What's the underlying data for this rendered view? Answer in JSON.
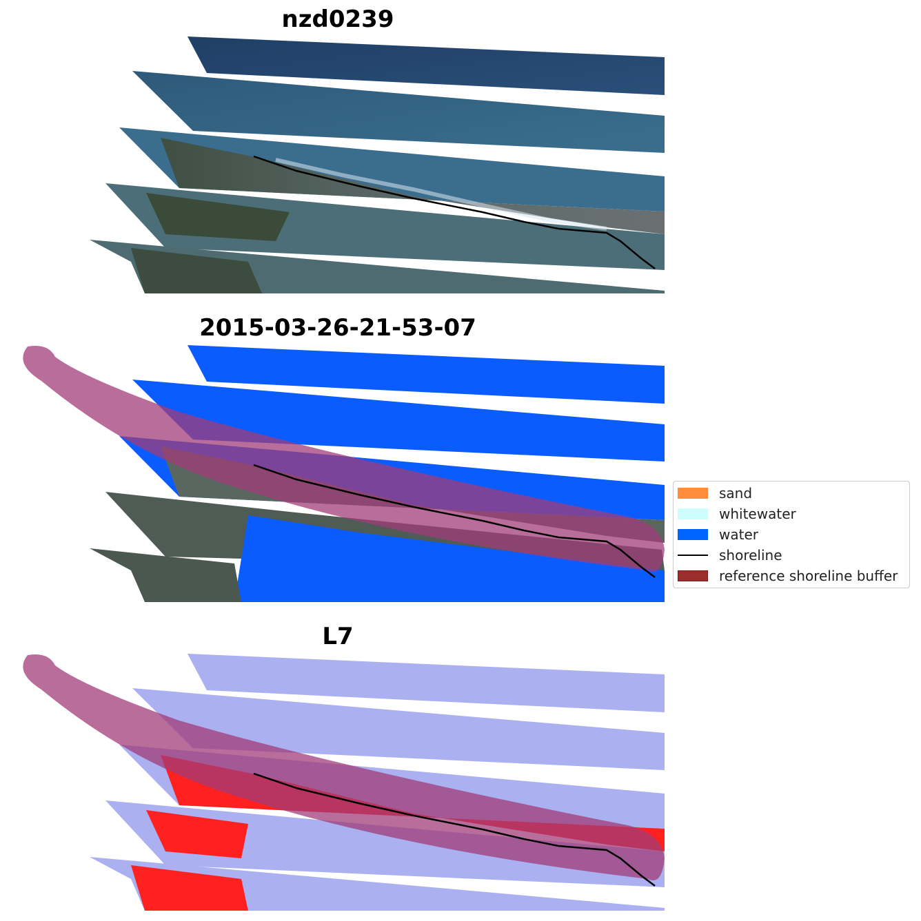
{
  "panels": [
    {
      "title": "nzd0239",
      "mode": "rgb"
    },
    {
      "title": "2015-03-26-21-53-07",
      "mode": "classified"
    },
    {
      "title": "L7",
      "mode": "index"
    }
  ],
  "legend": {
    "items": [
      {
        "label": "sand",
        "color": "#ff8c3a",
        "kind": "patch"
      },
      {
        "label": "whitewater",
        "color": "#cdfdfd",
        "kind": "patch"
      },
      {
        "label": "water",
        "color": "#0064ff",
        "kind": "patch"
      },
      {
        "label": "shoreline",
        "color": "#000000",
        "kind": "line"
      },
      {
        "label": "reference shoreline buffer",
        "color": "#9b2d2d",
        "kind": "patch"
      }
    ]
  },
  "colors": {
    "ocean_rgb": "#2a4f7a",
    "land_rgb": "#4a5a4a",
    "water_class": "#0a5cff",
    "buffer": "#a03c78",
    "index_water": "#aab0f0",
    "index_land": "#ff2020",
    "shoreline": "#000000"
  }
}
